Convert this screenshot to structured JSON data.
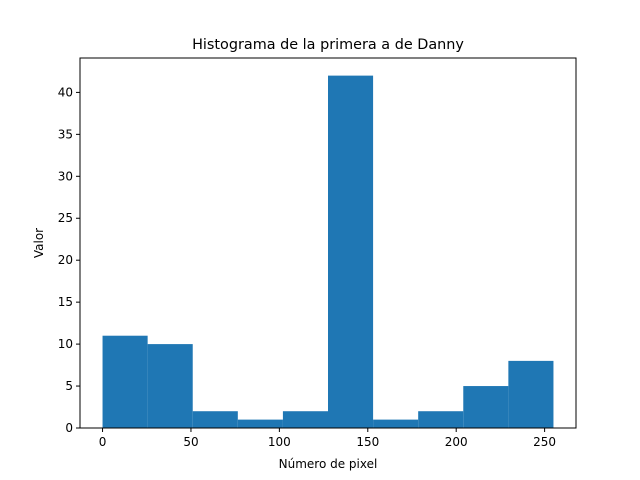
{
  "chart_data": {
    "type": "bar",
    "title": "Histograma de la primera a de Danny",
    "xlabel": "Número de pixel",
    "ylabel": "Valor",
    "bin_edges": [
      0,
      25.5,
      51,
      76.5,
      102,
      127.5,
      153,
      178.5,
      204,
      229.5,
      255
    ],
    "values": [
      11,
      10,
      2,
      1,
      2,
      42,
      1,
      2,
      5,
      8
    ],
    "xlim": [
      -12.75,
      267.75
    ],
    "ylim": [
      0,
      44.1
    ],
    "xticks": [
      0,
      50,
      100,
      150,
      200,
      250
    ],
    "xtick_labels": [
      "0",
      "50",
      "100",
      "150",
      "200",
      "250"
    ],
    "yticks": [
      0,
      5,
      10,
      15,
      20,
      25,
      30,
      35,
      40
    ],
    "ytick_labels": [
      "0",
      "5",
      "10",
      "15",
      "20",
      "25",
      "30",
      "35",
      "40"
    ],
    "bar_color": "#1f77b4",
    "grid": false,
    "legend": "none"
  }
}
